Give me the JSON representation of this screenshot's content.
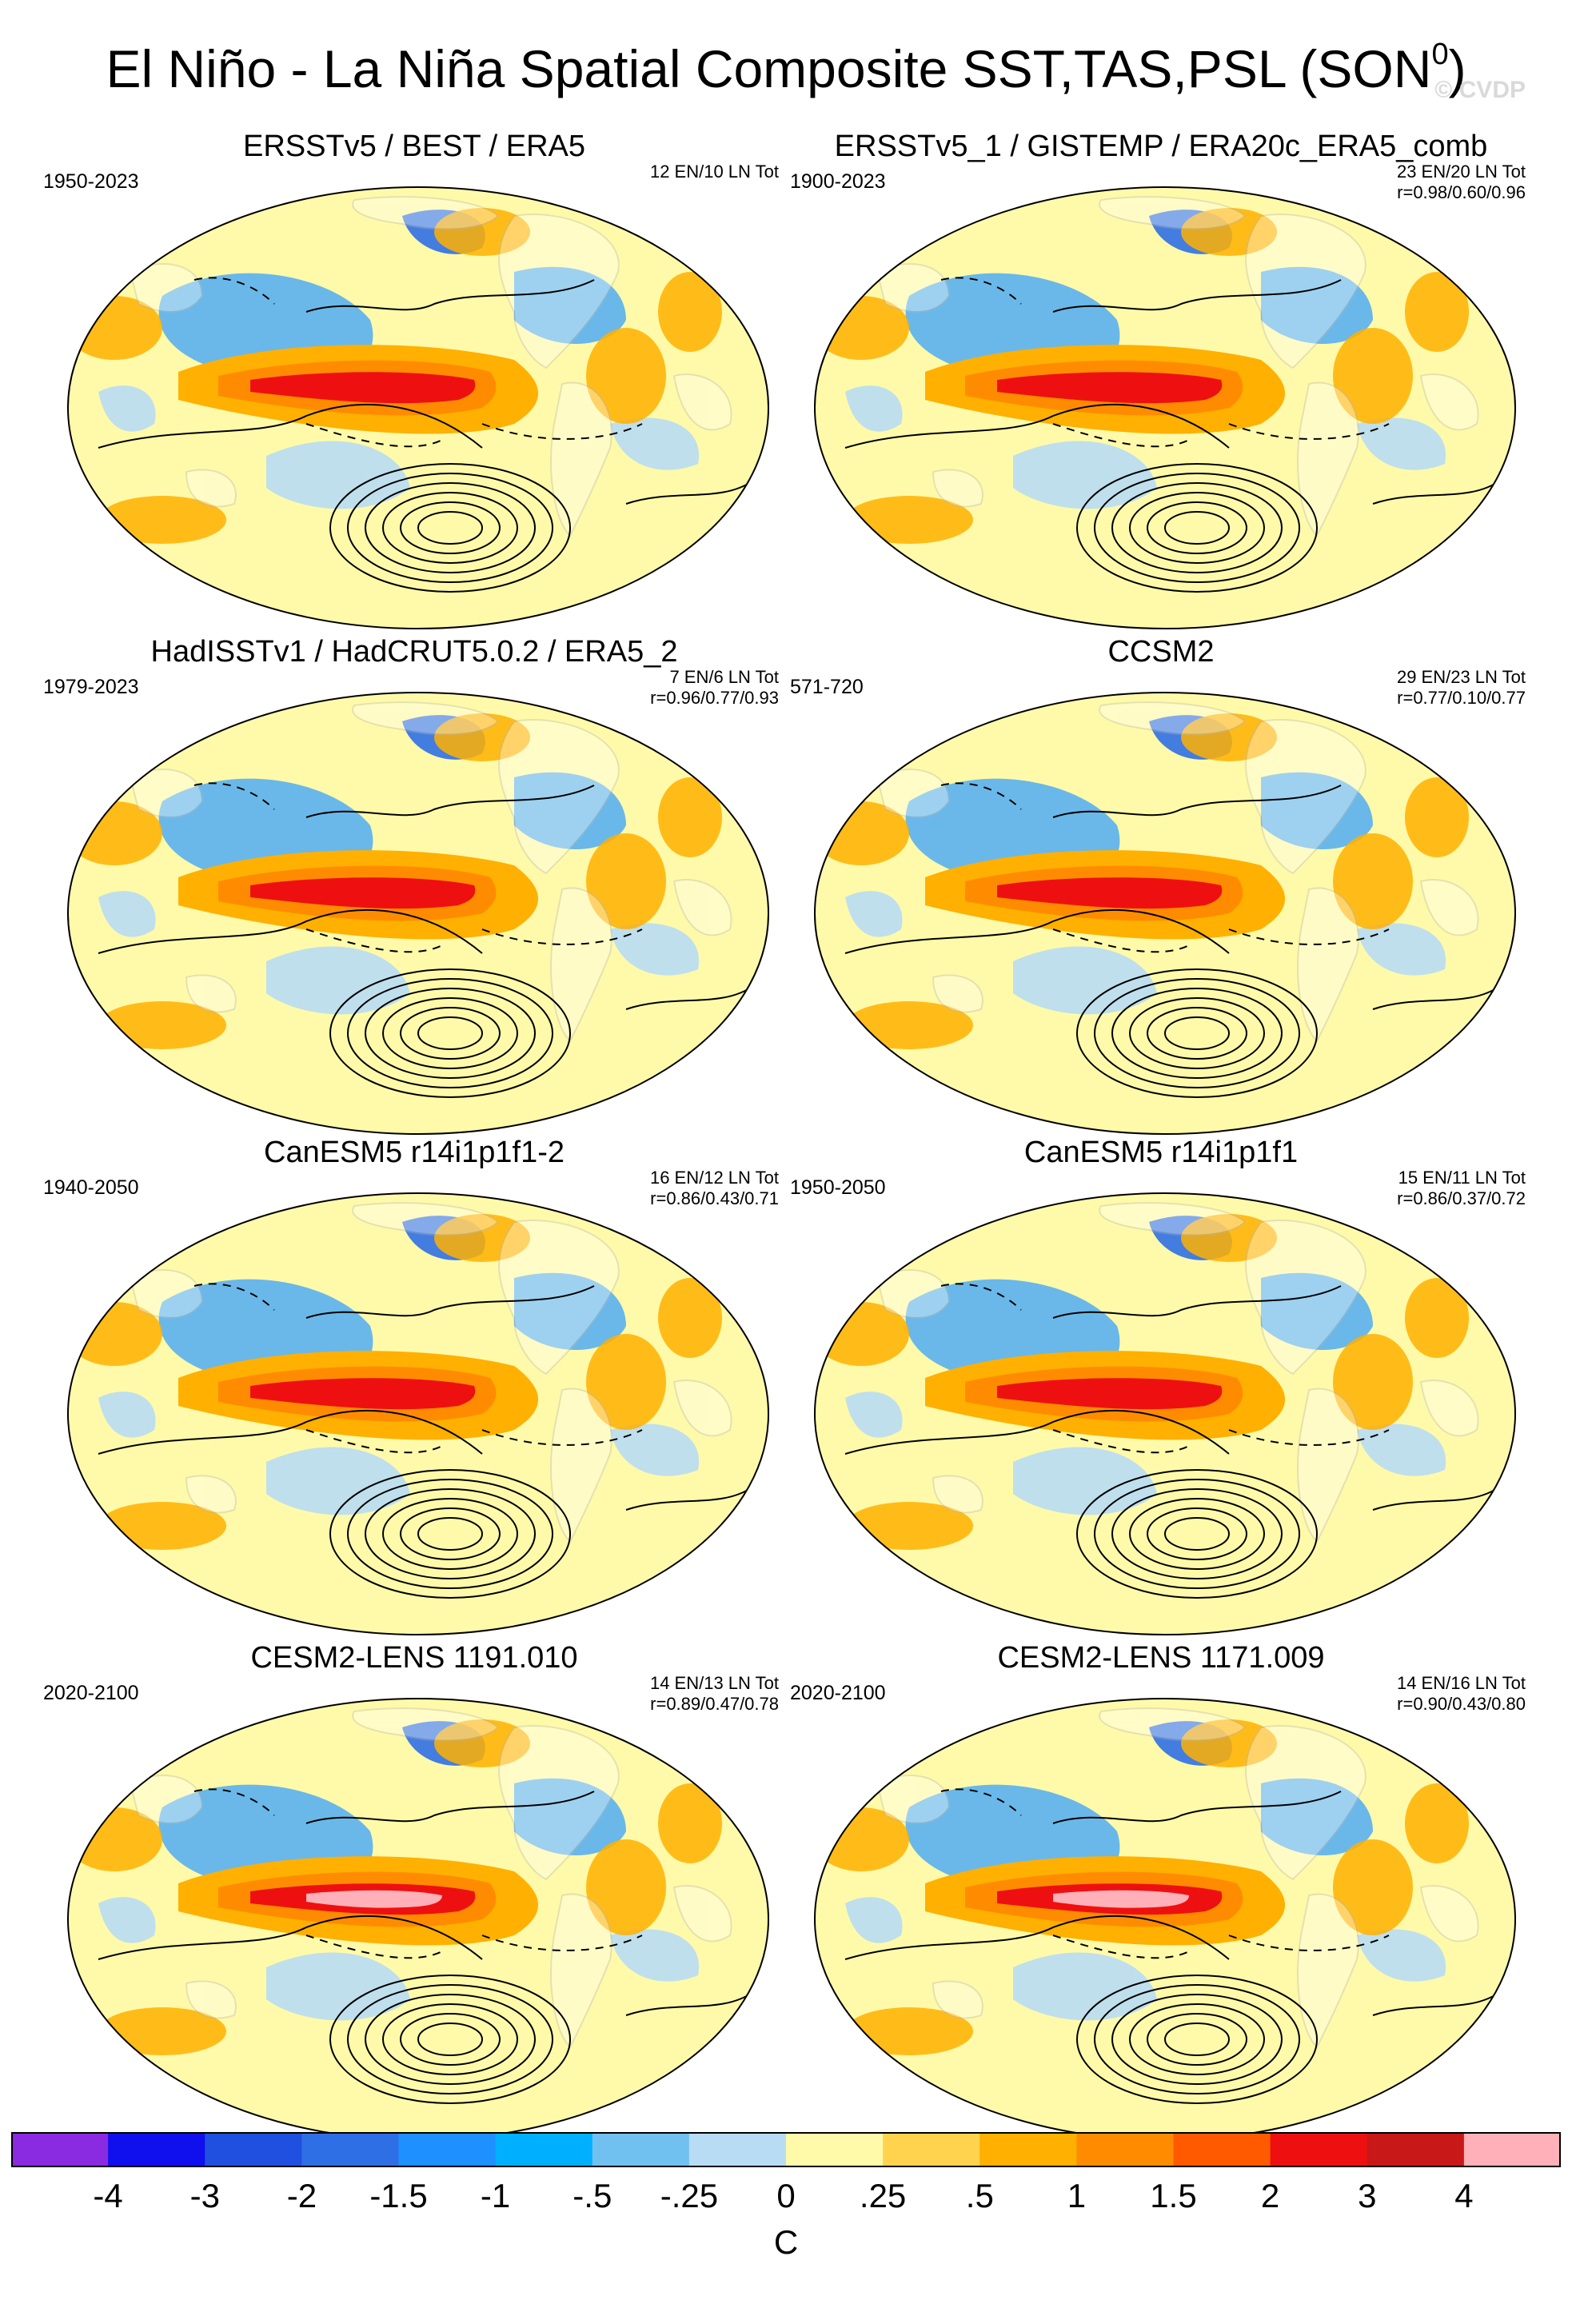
{
  "title_main": "El Niño - La Niña Spatial Composite SST,TAS,PSL (SON",
  "title_sup": "0",
  "title_close": ")",
  "watermark": "© CVDP",
  "panels": [
    {
      "title": "ERSSTv5 / BEST / ERA5",
      "period": "1950-2023",
      "stats1": "12 EN/10 LN Tot",
      "stats2": ""
    },
    {
      "title": "ERSSTv5_1 / GISTEMP / ERA20c_ERA5_comb",
      "period": "1900-2023",
      "stats1": "23 EN/20 LN Tot",
      "stats2": "r=0.98/0.60/0.96"
    },
    {
      "title": "HadISSTv1 / HadCRUT5.0.2 / ERA5_2",
      "period": "1979-2023",
      "stats1": "7 EN/6 LN Tot",
      "stats2": "r=0.96/0.77/0.93"
    },
    {
      "title": "CCSM2",
      "period": "571-720",
      "stats1": "29 EN/23 LN Tot",
      "stats2": "r=0.77/0.10/0.77"
    },
    {
      "title": "CanESM5 r14i1p1f1-2",
      "period": "1940-2050",
      "stats1": "16 EN/12 LN Tot",
      "stats2": "r=0.86/0.43/0.71"
    },
    {
      "title": "CanESM5 r14i1p1f1",
      "period": "1950-2050",
      "stats1": "15 EN/11 LN Tot",
      "stats2": "r=0.86/0.37/0.72"
    },
    {
      "title": "CESM2-LENS 1191.010",
      "period": "2020-2100",
      "stats1": "14 EN/13 LN Tot",
      "stats2": "r=0.89/0.47/0.78"
    },
    {
      "title": "CESM2-LENS 1171.009",
      "period": "2020-2100",
      "stats1": "14 EN/16 LN Tot",
      "stats2": "r=0.90/0.43/0.80"
    }
  ],
  "colorbar": {
    "colors": [
      "#8a2be2",
      "#1010ee",
      "#2050e0",
      "#2f6fe6",
      "#1e90ff",
      "#00b0ff",
      "#70c0f0",
      "#b8dcf4",
      "#fffaaa",
      "#ffd34d",
      "#ffb000",
      "#ff8c00",
      "#ff5a00",
      "#ee1010",
      "#c81818",
      "#ffb0b8"
    ],
    "labels": [
      "-4",
      "-3",
      "-2",
      "-1.5",
      "-1",
      "-.5",
      "-.25",
      "0",
      ".25",
      ".5",
      "1",
      "1.5",
      "2",
      "3",
      "4"
    ],
    "units": "C"
  },
  "palette": {
    "deep_blue": "#2f6fe6",
    "blue": "#5ab0f0",
    "light_blue": "#b8dcf4",
    "yellow": "#fffaaa",
    "orange": "#ffb000",
    "dark_orange": "#ff8c00",
    "red": "#ee1010",
    "pink": "#ffb0b8",
    "land": "#ffffff",
    "coast": "#b5b5b5"
  }
}
